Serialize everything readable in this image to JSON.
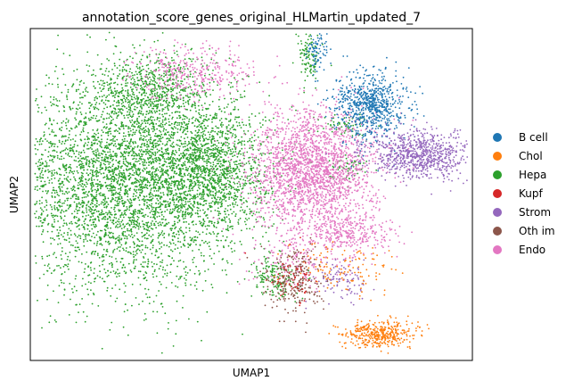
{
  "chart_data": {
    "type": "scatter",
    "title": "annotation_score_genes_original_HLMartin_updated_7",
    "xlabel": "UMAP1",
    "ylabel": "UMAP2",
    "xlim": [
      0,
      100
    ],
    "ylim": [
      0,
      100
    ],
    "grid": false,
    "ticks": false,
    "legend_position": "right",
    "series": [
      {
        "name": "B cell",
        "color": "#1f77b4"
      },
      {
        "name": "Chol",
        "color": "#ff7f0e"
      },
      {
        "name": "Hepa",
        "color": "#2ca02c"
      },
      {
        "name": "Kupf",
        "color": "#d62728"
      },
      {
        "name": "Strom",
        "color": "#9467bd"
      },
      {
        "name": "Oth im",
        "color": "#8c564b"
      },
      {
        "name": "Endo",
        "color": "#e377c2"
      }
    ],
    "clusters": [
      {
        "series": "Hepa",
        "cx": 21,
        "cy": 54,
        "sx": 13,
        "sy": 16,
        "n": 4200
      },
      {
        "series": "Hepa",
        "cx": 40,
        "cy": 58,
        "sx": 7,
        "sy": 10,
        "n": 1400
      },
      {
        "series": "Hepa",
        "cx": 28,
        "cy": 82,
        "sx": 6,
        "sy": 5,
        "n": 500
      },
      {
        "series": "Hepa",
        "cx": 63,
        "cy": 91,
        "sx": 1.2,
        "sy": 4,
        "n": 100
      },
      {
        "series": "Hepa",
        "cx": 55,
        "cy": 25,
        "sx": 2.5,
        "sy": 3,
        "n": 150
      },
      {
        "series": "Hepa",
        "cx": 72,
        "cy": 58,
        "sx": 2,
        "sy": 2,
        "n": 60
      },
      {
        "series": "Hepa",
        "cx": 71,
        "cy": 71,
        "sx": 3,
        "sy": 2,
        "n": 60
      },
      {
        "series": "Endo",
        "cx": 64,
        "cy": 57,
        "sx": 7,
        "sy": 9,
        "n": 2200
      },
      {
        "series": "Endo",
        "cx": 37,
        "cy": 87,
        "sx": 7,
        "sy": 4,
        "n": 350
      },
      {
        "series": "Endo",
        "cx": 72,
        "cy": 38,
        "sx": 5,
        "sy": 3,
        "n": 300
      },
      {
        "series": "Endo",
        "cx": 60,
        "cy": 30,
        "sx": 5,
        "sy": 4,
        "n": 150
      },
      {
        "series": "B cell",
        "cx": 77,
        "cy": 77,
        "sx": 4,
        "sy": 5,
        "n": 750
      },
      {
        "series": "B cell",
        "cx": 65,
        "cy": 93,
        "sx": 1.2,
        "sy": 3,
        "n": 80
      },
      {
        "series": "Strom",
        "cx": 88,
        "cy": 62,
        "sx": 6,
        "sy": 3.5,
        "n": 800
      },
      {
        "series": "Strom",
        "cx": 70,
        "cy": 24,
        "sx": 3,
        "sy": 3,
        "n": 100
      },
      {
        "series": "Chol",
        "cx": 79,
        "cy": 8,
        "sx": 4,
        "sy": 2,
        "n": 400
      },
      {
        "series": "Chol",
        "cx": 71,
        "cy": 28,
        "sx": 6,
        "sy": 4,
        "n": 120
      },
      {
        "series": "Oth im",
        "cx": 60,
        "cy": 24,
        "sx": 3,
        "sy": 5,
        "n": 250
      },
      {
        "series": "Kupf",
        "cx": 59,
        "cy": 24,
        "sx": 3,
        "sy": 4,
        "n": 60
      }
    ]
  }
}
